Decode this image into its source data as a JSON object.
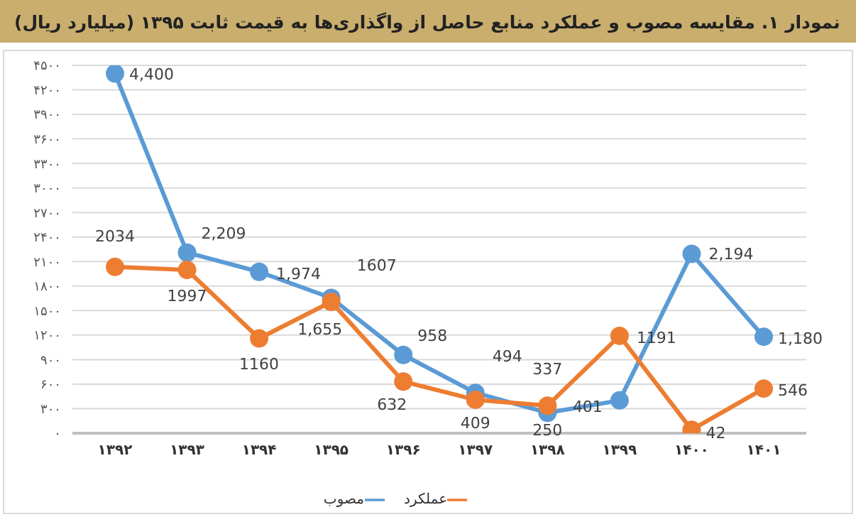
{
  "chart_data": {
    "type": "line",
    "title": "نمودار ۱. مقایسه مصوب و عملکرد منابع حاصل از واگذاری‌ها به قیمت ثابت ۱۳۹۵ (میلیارد ریال)",
    "categories": [
      "۱۳۹۲",
      "۱۳۹۳",
      "۱۳۹۴",
      "۱۳۹۵",
      "۱۳۹۶",
      "۱۳۹۷",
      "۱۳۹۸",
      "۱۳۹۹",
      "۱۴۰۰",
      "۱۴۰۱"
    ],
    "series": [
      {
        "name": "مصوب",
        "color": "#5b9bd5",
        "values": [
          4400,
          2209,
          1974,
          1655,
          958,
          494,
          250,
          401,
          2194,
          1180
        ],
        "value_labels": [
          "4,400",
          "2,209",
          "1,974",
          "1,655",
          "958",
          "494",
          "250",
          "401",
          "2,194",
          "1,180"
        ]
      },
      {
        "name": "عملکرد",
        "color": "#ed7d31",
        "values": [
          2034,
          1997,
          1160,
          1607,
          632,
          409,
          337,
          1191,
          42,
          546
        ],
        "value_labels": [
          "2034",
          "1997",
          "1160",
          "1607",
          "632",
          "409",
          "337",
          "1191",
          "42",
          "546"
        ]
      }
    ],
    "ylim": [
      0,
      4500
    ],
    "yticks": [
      {
        "value": 0,
        "label": "۰"
      },
      {
        "value": 300,
        "label": "۳۰۰"
      },
      {
        "value": 600,
        "label": "۶۰۰"
      },
      {
        "value": 900,
        "label": "۹۰۰"
      },
      {
        "value": 1200,
        "label": "۱۲۰۰"
      },
      {
        "value": 1500,
        "label": "۱۵۰۰"
      },
      {
        "value": 1800,
        "label": "۱۸۰۰"
      },
      {
        "value": 2100,
        "label": "۲۱۰۰"
      },
      {
        "value": 2400,
        "label": "۲۴۰۰"
      },
      {
        "value": 2700,
        "label": "۲۷۰۰"
      },
      {
        "value": 3000,
        "label": "۳۰۰۰"
      },
      {
        "value": 3300,
        "label": "۳۳۰۰"
      },
      {
        "value": 3600,
        "label": "۳۶۰۰"
      },
      {
        "value": 3900,
        "label": "۳۹۰۰"
      },
      {
        "value": 4200,
        "label": "۴۲۰۰"
      },
      {
        "value": 4500,
        "label": "۴۵۰۰"
      }
    ],
    "grid": "y",
    "legend": "bottom",
    "marker": "circle",
    "line_style": "solid"
  }
}
